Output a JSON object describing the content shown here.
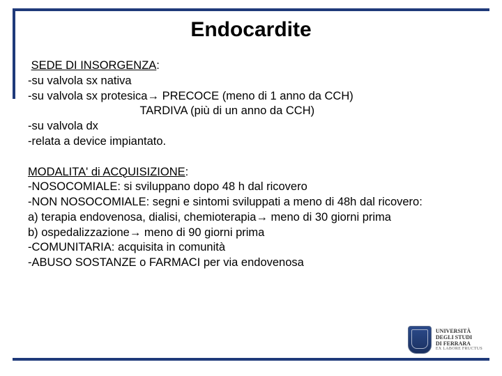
{
  "title": "Endocardite",
  "section1": {
    "heading": "SEDE DI INSORGENZA",
    "headingSuffix": ":",
    "lines": [
      "-su valvola sx nativa",
      "-su valvola sx protesica→ PRECOCE (meno di 1 anno da CCH)",
      "                                   TARDIVA (più di un anno da CCH)",
      "-su valvola dx",
      "-relata a device impiantato."
    ]
  },
  "section2": {
    "heading": "MODALITA' di ACQUISIZIONE",
    "headingSuffix": ":",
    "lines": [
      "-NOSOCOMIALE: si sviluppano dopo 48 h dal ricovero",
      "-NON NOSOCOMIALE: segni e sintomi sviluppati a meno di 48h dal ricovero:",
      "a) terapia endovenosa, dialisi, chemioterapia→ meno di 30 giorni prima",
      "b) ospedalizzazione→ meno di 90 giorni prima",
      "-COMUNITARIA: acquisita in comunità",
      "-ABUSO SOSTANZE o FARMACI per via endovenosa"
    ]
  },
  "logo": {
    "line1": "UNIVERSITÀ",
    "line2": "DEGLI STUDI",
    "line3": "DI FERRARA",
    "motto": "EX LABORE FRUCTUS"
  },
  "colors": {
    "border": "#1f3a7a",
    "text": "#000000",
    "background": "#ffffff"
  }
}
